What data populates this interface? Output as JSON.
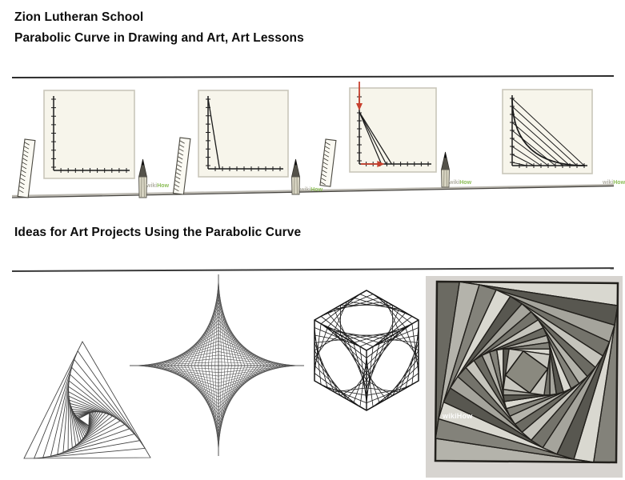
{
  "header": {
    "school": "Zion Lutheran School",
    "subtitle": "Parabolic Curve in Drawing and Art, Art Lessons"
  },
  "section": {
    "heading": "Ideas for Art Projects Using the Parabolic Curve"
  },
  "watermark": {
    "gray": "wiki",
    "green": "How",
    "full": "wikiHow"
  },
  "colors": {
    "panel_bg": "#f7f5eb",
    "panel_border": "#c9c6ba",
    "ink": "#1c1c1c",
    "red": "#c8402e",
    "photo_bg": "#d7d4d0",
    "art_line": "#3f3f3f",
    "star_line": "#565656",
    "cube_line": "#181818",
    "rule": "#2d2d2d"
  },
  "tutorial_steps": [
    {
      "name": "step-1-empty-axes"
    },
    {
      "name": "step-2-first-line"
    },
    {
      "name": "step-3-fan-lines-with-guide-arrows"
    },
    {
      "name": "step-4-completed-parabolic-curve"
    }
  ],
  "art_projects": [
    {
      "name": "whirling-triangles-string-art"
    },
    {
      "name": "four-pointed-star-astroid-string-art"
    },
    {
      "name": "cube-faces-string-art"
    },
    {
      "name": "rotating-squares-marker-drawing"
    }
  ]
}
